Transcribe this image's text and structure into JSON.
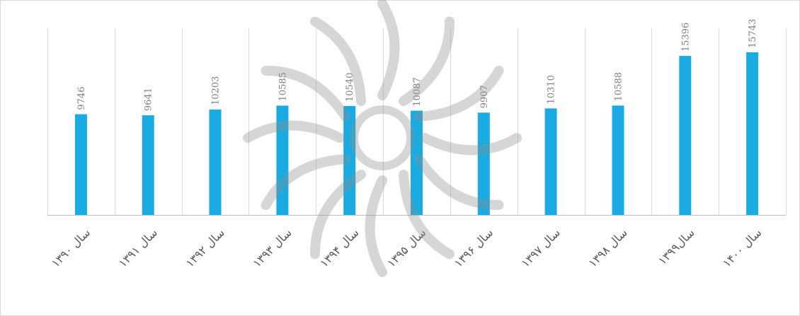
{
  "chart_data": {
    "type": "bar",
    "categories": [
      "سال ۱۳۹۰",
      "سال ۱۳۹۱",
      "سال ۱۳۹۲",
      "سال ۱۳۹۳",
      "سال ۱۳۹۴",
      "سال ۱۳۹۵",
      "سال ۱۳۹۶",
      "سال ۱۳۹۷",
      "سال ۱۳۹۸",
      "سال۱۳۹۹",
      "سال ۱۴۰۰"
    ],
    "values": [
      9746,
      9641,
      10203,
      10585,
      10540,
      10087,
      9907,
      10310,
      10588,
      15396,
      15743
    ],
    "value_labels": [
      "9746",
      "9641",
      "10203",
      "10585",
      "10540",
      "10087",
      "9907",
      "10310",
      "10588",
      "15396",
      "15743"
    ],
    "title": "",
    "xlabel": "",
    "ylabel": "",
    "ylim": [
      0,
      16000
    ],
    "y_axis_visible": false,
    "grid": "vertical category separators",
    "legend": "none",
    "bar_color": "#1AABE2",
    "watermark": "logo"
  },
  "colors": {
    "bar": "#1AABE2",
    "grid": "#d9d9d9",
    "label": "#7f7f7f",
    "category_label": "#595959"
  }
}
